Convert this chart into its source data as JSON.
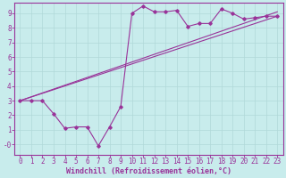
{
  "xlabel": "Windchill (Refroidissement éolien,°C)",
  "bg_color": "#c8ecec",
  "grid_color": "#b0d8d8",
  "line_color": "#993399",
  "xlim": [
    -0.5,
    23.5
  ],
  "ylim": [
    -0.7,
    9.7
  ],
  "xticks": [
    0,
    1,
    2,
    3,
    4,
    5,
    6,
    7,
    8,
    9,
    10,
    11,
    12,
    13,
    14,
    15,
    16,
    17,
    18,
    19,
    20,
    21,
    22,
    23
  ],
  "yticks": [
    0,
    1,
    2,
    3,
    4,
    5,
    6,
    7,
    8,
    9
  ],
  "ytick_labels": [
    "-0",
    "1",
    "2",
    "3",
    "4",
    "5",
    "6",
    "7",
    "8",
    "9"
  ],
  "line1_x": [
    0,
    1,
    2,
    3,
    4,
    5,
    6,
    7,
    8,
    9,
    10,
    11,
    12,
    13,
    14,
    15,
    16,
    17,
    18,
    19,
    20,
    21,
    22,
    23
  ],
  "line1_y": [
    3.0,
    3.0,
    3.0,
    2.1,
    1.1,
    1.2,
    1.2,
    -0.1,
    1.2,
    2.6,
    9.0,
    9.5,
    9.1,
    9.1,
    9.2,
    8.1,
    8.3,
    8.3,
    9.3,
    9.0,
    8.6,
    8.7,
    8.8,
    8.8
  ],
  "line2_x": [
    0,
    23
  ],
  "line2_y": [
    3.0,
    8.8
  ],
  "line3_x": [
    0,
    23
  ],
  "line3_y": [
    3.0,
    9.1
  ],
  "tick_fontsize": 5.5,
  "xlabel_fontsize": 6.0
}
